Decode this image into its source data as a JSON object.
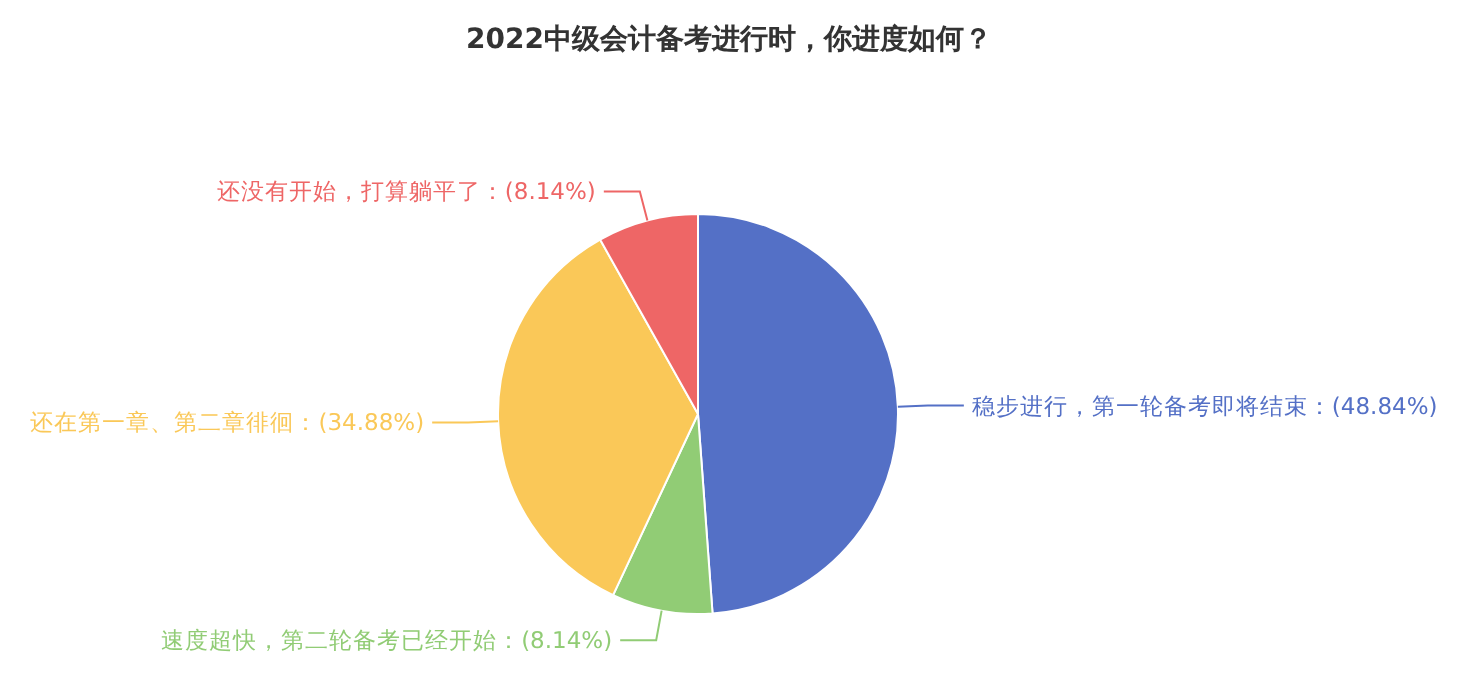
{
  "chart_data": {
    "type": "pie",
    "title": "2022中级会计备考进行时，你进度如何？",
    "categories": [
      "稳步进行，第一轮备考即将结束",
      "速度超快，第二轮备考已经开始",
      "还在第一章、第二章徘徊",
      "还没有开始，打算躺平了"
    ],
    "values": [
      48.84,
      8.14,
      34.88,
      8.14
    ],
    "value_labels": [
      "(48.84%)",
      "(8.14%)",
      "(34.88%)",
      "(8.14%)"
    ],
    "colors": [
      "#5470c6",
      "#91cc75",
      "#fac858",
      "#ee6666"
    ]
  }
}
